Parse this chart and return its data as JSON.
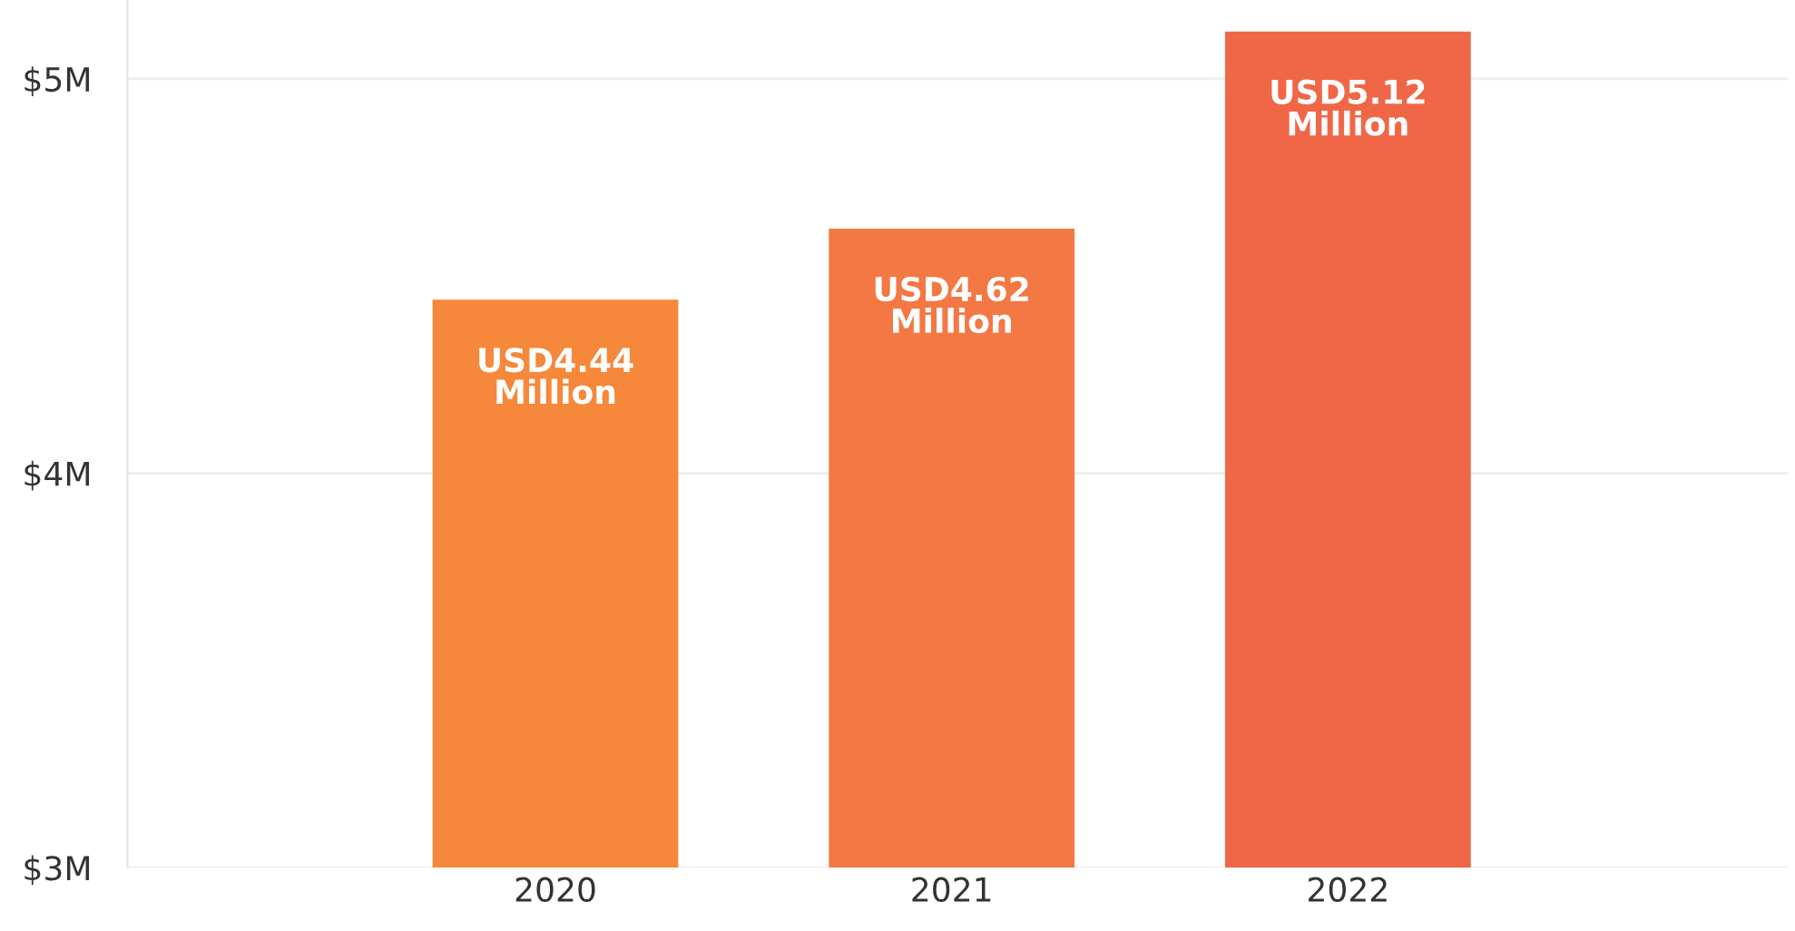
{
  "chart_data": {
    "type": "bar",
    "categories": [
      "2020",
      "2021",
      "2022"
    ],
    "values": [
      4.44,
      4.62,
      5.12
    ],
    "colors": [
      "#f5883a",
      "#f37844",
      "#f06747"
    ],
    "value_labels": [
      "USD4.44 Million",
      "USD4.62 Million",
      "USD5.12 Million"
    ],
    "ylim": [
      3,
      5.2
    ],
    "yticks": [
      {
        "value": 3,
        "label": "$3M"
      },
      {
        "value": 4,
        "label": "$4M"
      },
      {
        "value": 5,
        "label": "$5M"
      }
    ],
    "grid": "y"
  }
}
